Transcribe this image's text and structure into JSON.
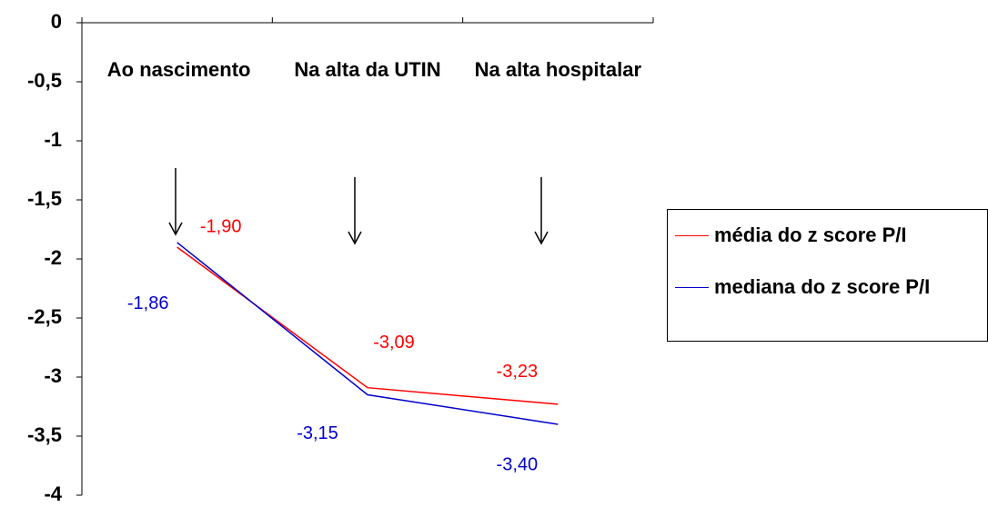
{
  "chart_data": {
    "type": "line",
    "categories": [
      "Ao nascimento",
      "Na alta da UTIN",
      "Na alta hospitalar"
    ],
    "series": [
      {
        "name": "média do z score P/I",
        "color": "#ff0000",
        "values": [
          -1.9,
          -3.09,
          -3.23
        ],
        "value_labels": [
          "-1,90",
          "-3,09",
          "-3,23"
        ]
      },
      {
        "name": "mediana do z score P/I",
        "color": "#0000cc",
        "values": [
          -1.86,
          -3.15,
          -3.4
        ],
        "value_labels": [
          "-1,86",
          "-3,15",
          "-3,40"
        ]
      }
    ],
    "ylim": [
      -4,
      0
    ],
    "yticks": [
      0,
      {
        "value": -0.5,
        "label": "-0,5"
      },
      -1,
      {
        "value": -1.5,
        "label": "-1,5"
      },
      -2,
      {
        "value": -2.5,
        "label": "-2,5"
      },
      -3,
      {
        "value": -3.5,
        "label": "-3,5"
      },
      -4
    ],
    "legend": "right",
    "grid": false
  }
}
